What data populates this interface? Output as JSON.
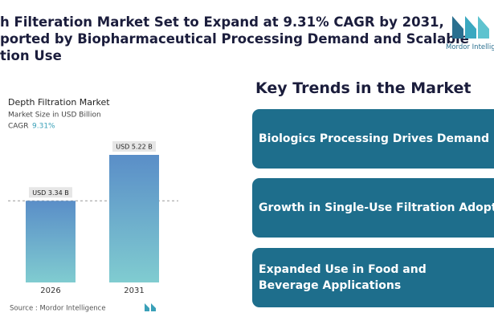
{
  "header": {
    "title_lines": [
      "h Filteration Market Set to Expand at 9.31% CAGR by 2031,",
      "ported by Biopharmaceutical Processing Demand and Scalable",
      "tion Use"
    ]
  },
  "logo": {
    "text": "Mordor Intelligence"
  },
  "chart_data": {
    "type": "bar",
    "title": "Depth Filtration Market",
    "subtitle": "Market Size in USD Billion",
    "cagr_label": "CAGR",
    "cagr_value": "9.31%",
    "categories": [
      "2026",
      "2031"
    ],
    "values": [
      3.34,
      5.22
    ],
    "value_labels": [
      "USD 3.34 B",
      "USD 5.22 B"
    ],
    "source": "Source : Mordor Intelligence"
  },
  "trends": {
    "heading": "Key Trends in the Market",
    "items": [
      "Biologics Processing Drives Demand",
      "Growth in Single-Use Filtration Adoption",
      "Expanded Use in Food and Beverage Applications"
    ]
  }
}
